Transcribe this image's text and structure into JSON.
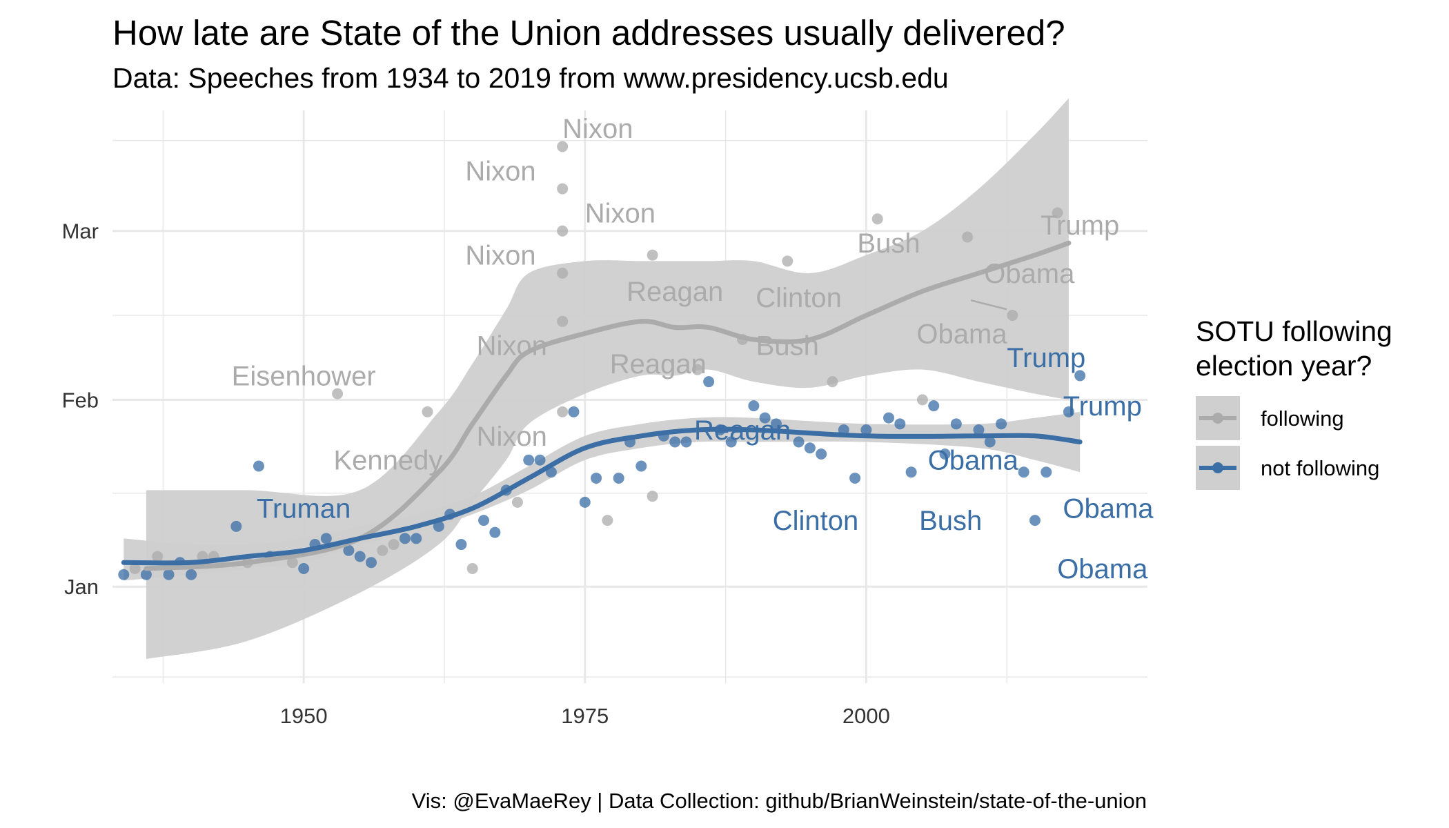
{
  "title": "How late are State of the Union addresses usually delivered?",
  "subtitle": "Data: Speeches from 1934 to 2019 from www.presidency.ucsb.edu",
  "caption": "Vis: @EvaMaeRey | Data Collection: github/BrianWeinstein/state-of-the-union",
  "colors": {
    "following": "#ababab",
    "not_following": "#3a6ea5",
    "band": "#cfcfcf",
    "grid": "#e8e8e8"
  },
  "legend": {
    "title_line1": "SOTU following",
    "title_line2": "election year?",
    "items": [
      {
        "key": "following",
        "label": "following"
      },
      {
        "key": "not_following",
        "label": "not following"
      }
    ]
  },
  "chart_data": {
    "type": "scatter",
    "title": "How late are State of the Union addresses usually delivered?",
    "subtitle": "Data: Speeches from 1934 to 2019 from www.presidency.ucsb.edu",
    "x_ticks": [
      1950,
      1975,
      2000
    ],
    "y_ticks": [
      {
        "label": "Jan",
        "day": 1
      },
      {
        "label": "Feb",
        "day": 32
      },
      {
        "label": "Mar",
        "day": 60
      }
    ],
    "xlim": [
      1933,
      2025
    ],
    "ylim": [
      -15,
      80
    ],
    "y_unit": "day of year",
    "grid": true,
    "legend_position": "right",
    "series": [
      {
        "name": "following",
        "points": [
          [
            1935,
            4
          ],
          [
            1937,
            6
          ],
          [
            1941,
            6
          ],
          [
            1942,
            6
          ],
          [
            1945,
            5
          ],
          [
            1949,
            5
          ],
          [
            1953,
            33
          ],
          [
            1957,
            7
          ],
          [
            1958,
            8
          ],
          [
            1961,
            30
          ],
          [
            1965,
            4
          ],
          [
            1969,
            15
          ],
          [
            1973,
            30
          ],
          [
            1973,
            45
          ],
          [
            1973,
            53
          ],
          [
            1973,
            60
          ],
          [
            1973,
            67
          ],
          [
            1973,
            74
          ],
          [
            1977,
            12
          ],
          [
            1981,
            16
          ],
          [
            1981,
            56
          ],
          [
            1985,
            37
          ],
          [
            1989,
            42
          ],
          [
            1993,
            55
          ],
          [
            1997,
            35
          ],
          [
            2001,
            62
          ],
          [
            2005,
            32
          ],
          [
            2009,
            59
          ],
          [
            2013,
            46
          ],
          [
            2017,
            63
          ]
        ]
      },
      {
        "name": "not following",
        "points": [
          [
            1934,
            3
          ],
          [
            1936,
            3
          ],
          [
            1938,
            3
          ],
          [
            1939,
            5
          ],
          [
            1940,
            3
          ],
          [
            1944,
            11
          ],
          [
            1946,
            21
          ],
          [
            1947,
            6
          ],
          [
            1950,
            4
          ],
          [
            1951,
            8
          ],
          [
            1952,
            9
          ],
          [
            1954,
            7
          ],
          [
            1955,
            6
          ],
          [
            1956,
            5
          ],
          [
            1959,
            9
          ],
          [
            1960,
            9
          ],
          [
            1962,
            11
          ],
          [
            1963,
            13
          ],
          [
            1964,
            8
          ],
          [
            1966,
            12
          ],
          [
            1967,
            10
          ],
          [
            1968,
            17
          ],
          [
            1970,
            22
          ],
          [
            1971,
            22
          ],
          [
            1972,
            20
          ],
          [
            1974,
            30
          ],
          [
            1975,
            15
          ],
          [
            1976,
            19
          ],
          [
            1978,
            19
          ],
          [
            1979,
            25
          ],
          [
            1980,
            21
          ],
          [
            1982,
            26
          ],
          [
            1983,
            25
          ],
          [
            1984,
            25
          ],
          [
            1986,
            35
          ],
          [
            1987,
            27
          ],
          [
            1988,
            25
          ],
          [
            1990,
            31
          ],
          [
            1991,
            29
          ],
          [
            1992,
            28
          ],
          [
            1994,
            25
          ],
          [
            1995,
            24
          ],
          [
            1996,
            23
          ],
          [
            1998,
            27
          ],
          [
            1999,
            19
          ],
          [
            2000,
            27
          ],
          [
            2002,
            29
          ],
          [
            2003,
            28
          ],
          [
            2004,
            20
          ],
          [
            2006,
            31
          ],
          [
            2007,
            23
          ],
          [
            2008,
            28
          ],
          [
            2010,
            27
          ],
          [
            2011,
            25
          ],
          [
            2012,
            28
          ],
          [
            2014,
            20
          ],
          [
            2015,
            12
          ],
          [
            2016,
            20
          ],
          [
            2018,
            30
          ],
          [
            2019,
            36
          ]
        ]
      }
    ],
    "smooth": [
      {
        "name": "following",
        "x": [
          1936,
          1945,
          1955,
          1962,
          1965,
          1968,
          1970,
          1975,
          1980,
          1983,
          1986,
          1990,
          1995,
          2000,
          2005,
          2010,
          2015,
          2018
        ],
        "y": [
          4,
          5,
          9,
          20,
          28,
          36,
          40,
          43,
          45,
          44,
          44,
          42,
          42,
          46,
          50,
          53,
          56,
          58
        ],
        "lower": [
          -11,
          -8,
          0,
          8,
          15,
          22,
          28,
          33,
          36,
          36,
          37,
          35,
          34,
          36,
          37,
          35,
          33,
          32
        ],
        "upper": [
          17,
          17,
          17,
          30,
          38,
          47,
          53,
          55,
          55,
          55,
          55,
          55,
          53,
          56,
          60,
          67,
          76,
          82
        ]
      },
      {
        "name": "not following",
        "x": [
          1934,
          1940,
          1945,
          1950,
          1955,
          1960,
          1965,
          1970,
          1975,
          1980,
          1985,
          1990,
          2000,
          2010,
          2015,
          2019
        ],
        "y": [
          5,
          5,
          6,
          7,
          9,
          11,
          14,
          19,
          24,
          26,
          27,
          27,
          26,
          26,
          26,
          25
        ],
        "lower": [
          2,
          3,
          4,
          5,
          8,
          10,
          13,
          17,
          22,
          24,
          25,
          25,
          25,
          24,
          22,
          20
        ],
        "upper": [
          9,
          8,
          8,
          9,
          11,
          13,
          16,
          21,
          26,
          28,
          29,
          29,
          28,
          28,
          29,
          30
        ]
      }
    ],
    "annotations": [
      {
        "text": "Nixon",
        "x": 1973,
        "y": 77,
        "group": "following",
        "anchor": "start"
      },
      {
        "text": "Nixon",
        "x": 1967.5,
        "y": 70,
        "group": "following",
        "anchor": "middle"
      },
      {
        "text": "Nixon",
        "x": 1975,
        "y": 63,
        "group": "following",
        "anchor": "start"
      },
      {
        "text": "Nixon",
        "x": 1967.5,
        "y": 56,
        "group": "following",
        "anchor": "middle"
      },
      {
        "text": "Nixon",
        "x": 1968.5,
        "y": 41,
        "group": "following",
        "anchor": "middle"
      },
      {
        "text": "Nixon",
        "x": 1968.5,
        "y": 26,
        "group": "following",
        "anchor": "middle"
      },
      {
        "text": "Eisenhower",
        "x": 1950,
        "y": 36,
        "group": "following",
        "anchor": "middle"
      },
      {
        "text": "Kennedy",
        "x": 1957.5,
        "y": 22,
        "group": "following",
        "anchor": "middle"
      },
      {
        "text": "Reagan",
        "x": 1983,
        "y": 50,
        "group": "following",
        "anchor": "middle"
      },
      {
        "text": "Reagan",
        "x": 1981.5,
        "y": 38,
        "group": "following",
        "anchor": "middle"
      },
      {
        "text": "Clinton",
        "x": 1994,
        "y": 49,
        "group": "following",
        "anchor": "middle"
      },
      {
        "text": "Bush",
        "x": 1993,
        "y": 41,
        "group": "following",
        "anchor": "middle"
      },
      {
        "text": "Bush",
        "x": 2002,
        "y": 58,
        "group": "following",
        "anchor": "middle"
      },
      {
        "text": "Obama",
        "x": 2008.5,
        "y": 43,
        "group": "following",
        "anchor": "middle"
      },
      {
        "text": "Obama",
        "x": 2014.5,
        "y": 53,
        "group": "following",
        "anchor": "middle"
      },
      {
        "text": "Trump",
        "x": 2019,
        "y": 61,
        "group": "following",
        "anchor": "middle"
      },
      {
        "text": "Truman",
        "x": 1950,
        "y": 14,
        "group": "not_following",
        "anchor": "middle"
      },
      {
        "text": "Reagan",
        "x": 1989,
        "y": 27,
        "group": "not_following",
        "anchor": "middle"
      },
      {
        "text": "Clinton",
        "x": 1995.5,
        "y": 12,
        "group": "not_following",
        "anchor": "middle"
      },
      {
        "text": "Obama",
        "x": 2009.5,
        "y": 22,
        "group": "not_following",
        "anchor": "middle"
      },
      {
        "text": "Bush",
        "x": 2007.5,
        "y": 12,
        "group": "not_following",
        "anchor": "middle"
      },
      {
        "text": "Trump",
        "x": 2016,
        "y": 39,
        "group": "not_following",
        "anchor": "middle"
      },
      {
        "text": "Trump",
        "x": 2021,
        "y": 31,
        "group": "not_following",
        "anchor": "middle"
      },
      {
        "text": "Obama",
        "x": 2021.5,
        "y": 14,
        "group": "not_following",
        "anchor": "middle"
      },
      {
        "text": "Obama",
        "x": 2021,
        "y": 4,
        "group": "not_following",
        "anchor": "middle"
      }
    ],
    "leader_lines": [
      {
        "group": "following",
        "x1": 2012.5,
        "y1": 47,
        "x2": 2009.3,
        "y2": 48.5
      }
    ]
  }
}
